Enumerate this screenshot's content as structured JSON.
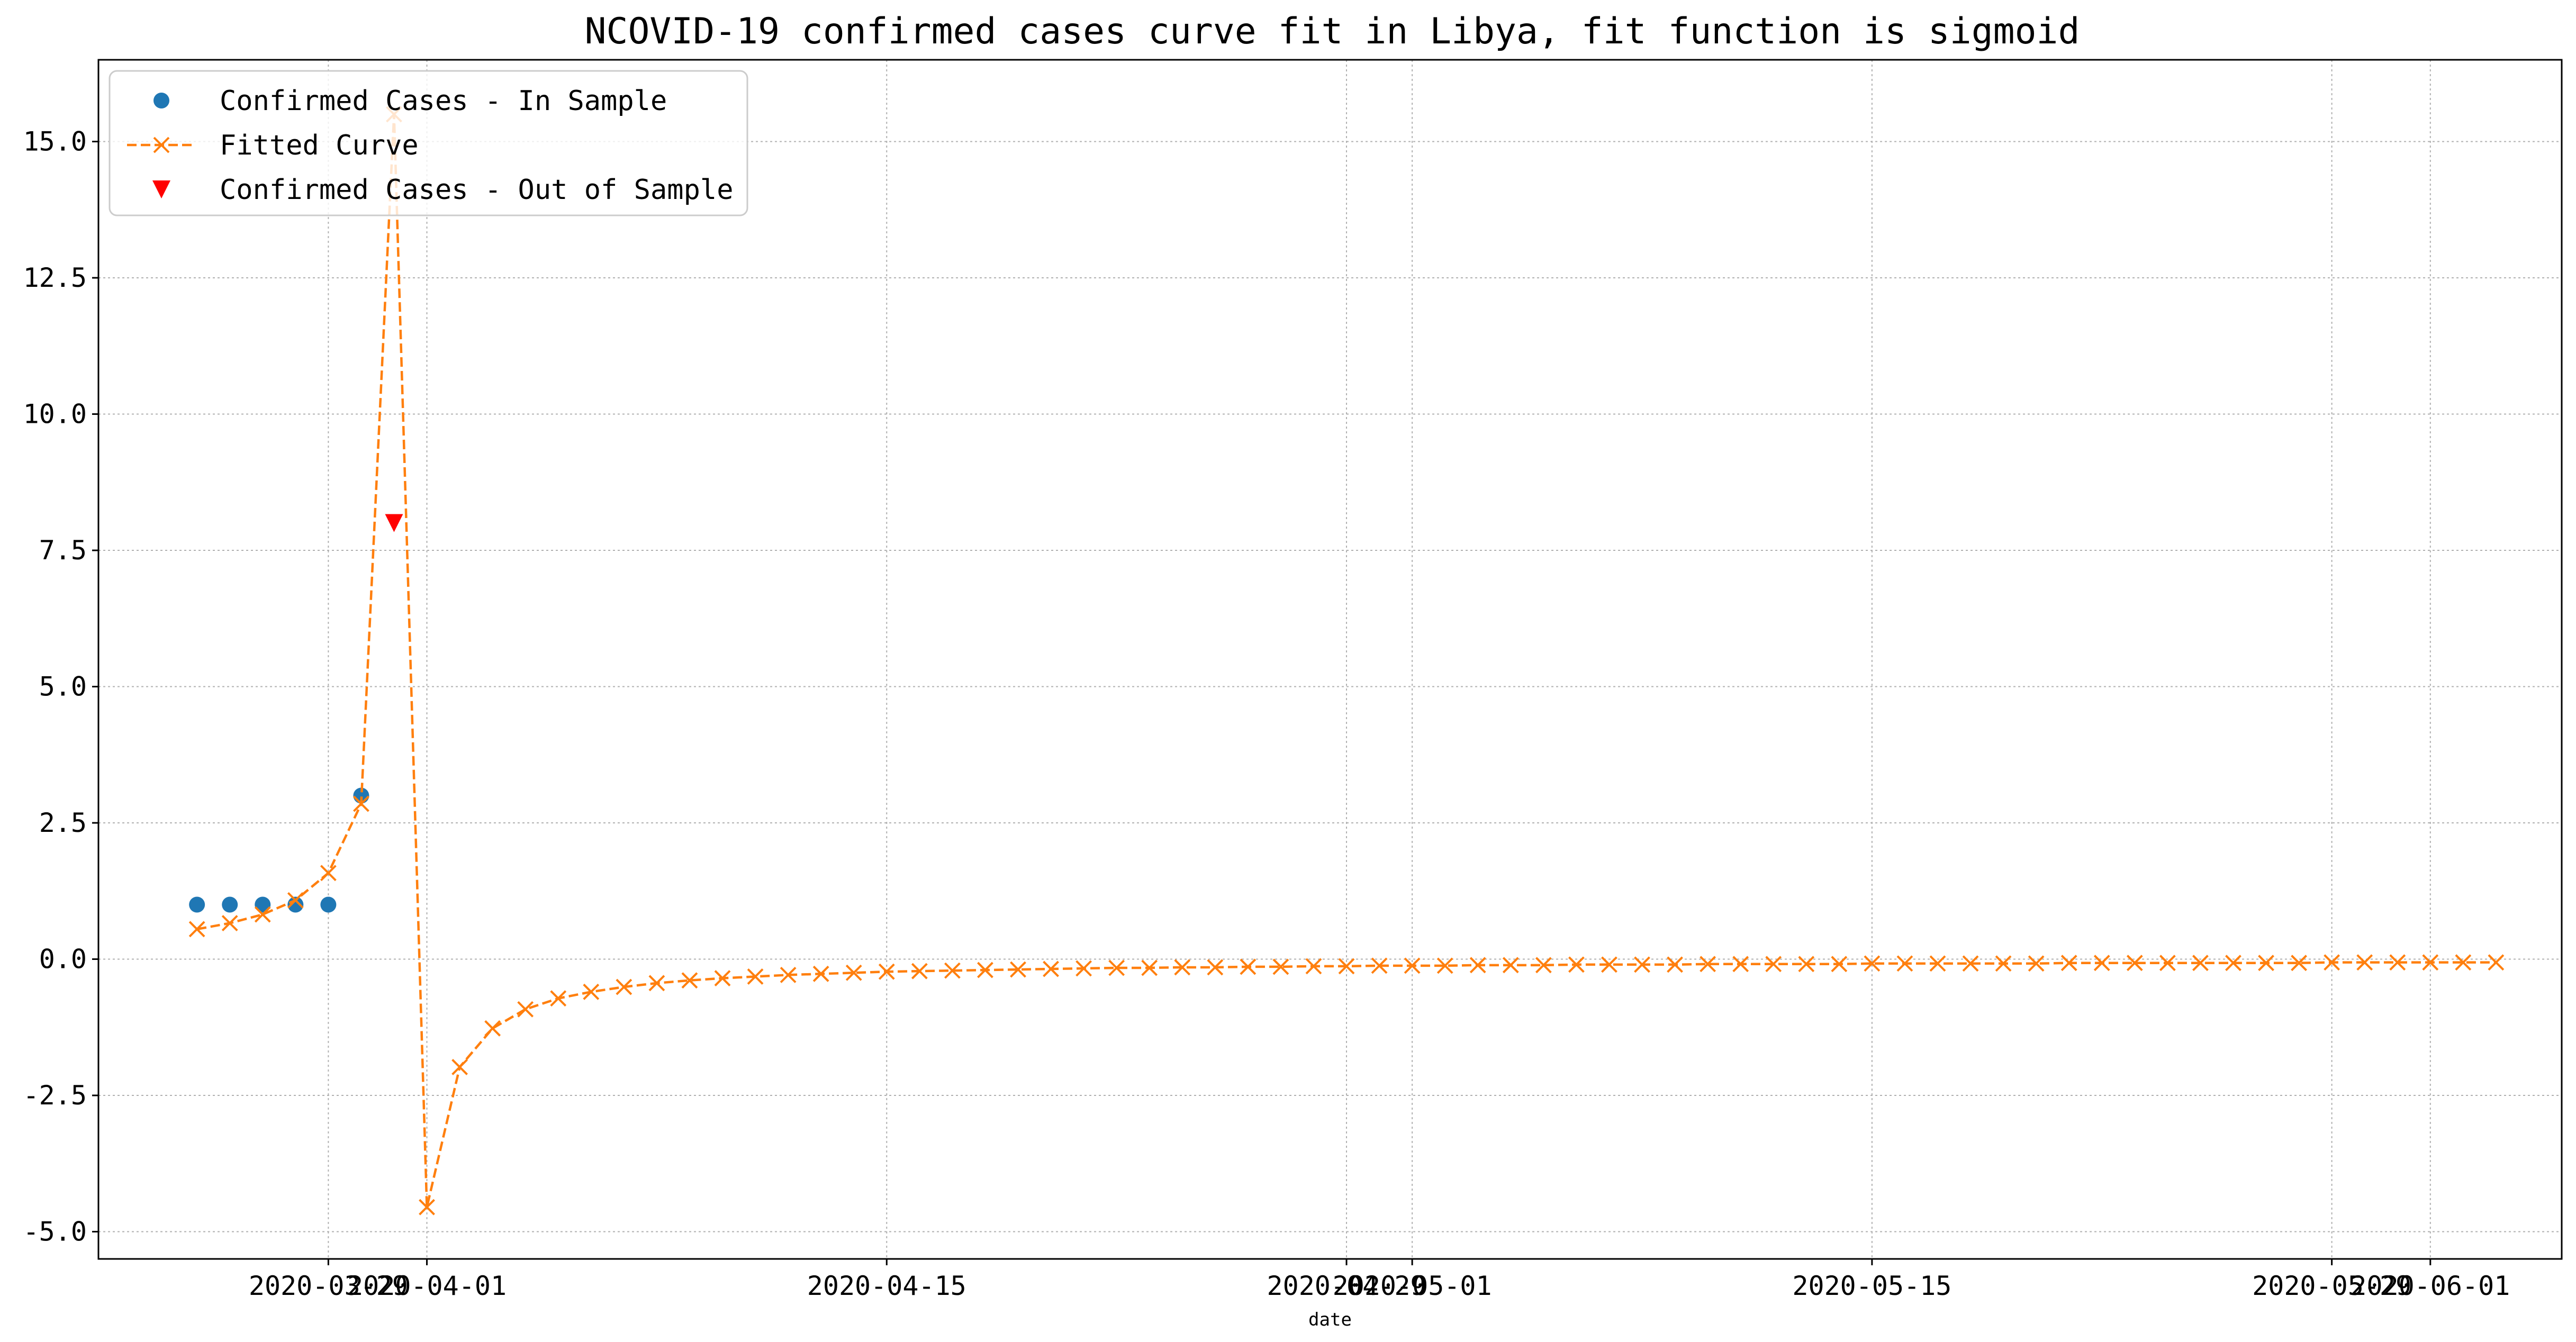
{
  "chart_data": {
    "type": "line",
    "title": "NCOVID-19 confirmed cases curve fit in Libya, fit function is sigmoid",
    "xlabel": "date",
    "ylabel": "",
    "x_ticks": [
      "2020-03-29",
      "2020-04-01",
      "2020-04-15",
      "2020-04-29",
      "2020-05-01",
      "2020-05-15",
      "2020-05-29",
      "2020-06-01"
    ],
    "y_ticks": [
      "-5.0",
      "-2.5",
      "0.0",
      "2.5",
      "5.0",
      "7.5",
      "10.0",
      "12.5",
      "15.0"
    ],
    "xlim": [
      "2020-03-22",
      "2020-06-05"
    ],
    "ylim": [
      -5.5,
      16.5
    ],
    "grid": true,
    "legend_position": "top-left",
    "series": [
      {
        "name": "Confirmed Cases - In Sample",
        "style": "points",
        "marker": "circle",
        "color": "#1f77b4",
        "x": [
          "2020-03-25",
          "2020-03-26",
          "2020-03-27",
          "2020-03-28",
          "2020-03-29",
          "2020-03-30"
        ],
        "y": [
          1,
          1,
          1,
          1,
          1,
          3
        ]
      },
      {
        "name": "Fitted Curve",
        "style": "dashed-line",
        "marker": "x",
        "color": "#ff7f0e",
        "x": [
          "2020-03-25",
          "2020-03-26",
          "2020-03-27",
          "2020-03-28",
          "2020-03-29",
          "2020-03-30",
          "2020-03-31",
          "2020-04-01",
          "2020-04-02",
          "2020-04-03",
          "2020-04-04",
          "2020-04-05",
          "2020-04-06",
          "2020-04-07",
          "2020-04-08",
          "2020-04-09",
          "2020-04-10",
          "2020-04-11",
          "2020-04-12",
          "2020-04-13",
          "2020-04-14",
          "2020-04-15",
          "2020-04-16",
          "2020-04-17",
          "2020-04-18",
          "2020-04-19",
          "2020-04-20",
          "2020-04-21",
          "2020-04-22",
          "2020-04-23",
          "2020-04-24",
          "2020-04-25",
          "2020-04-26",
          "2020-04-27",
          "2020-04-28",
          "2020-04-29",
          "2020-04-30",
          "2020-05-01",
          "2020-05-02",
          "2020-05-03",
          "2020-05-04",
          "2020-05-05",
          "2020-05-06",
          "2020-05-07",
          "2020-05-08",
          "2020-05-09",
          "2020-05-10",
          "2020-05-11",
          "2020-05-12",
          "2020-05-13",
          "2020-05-14",
          "2020-05-15",
          "2020-05-16",
          "2020-05-17",
          "2020-05-18",
          "2020-05-19",
          "2020-05-20",
          "2020-05-21",
          "2020-05-22",
          "2020-05-23",
          "2020-05-24",
          "2020-05-25",
          "2020-05-26",
          "2020-05-27",
          "2020-05-28",
          "2020-05-29",
          "2020-05-30",
          "2020-05-31",
          "2020-06-01",
          "2020-06-02",
          "2020-06-03"
        ],
        "y": [
          0.55,
          0.66,
          0.82,
          1.08,
          1.58,
          2.85,
          15.5,
          -4.55,
          -1.98,
          -1.27,
          -0.92,
          -0.72,
          -0.6,
          -0.51,
          -0.44,
          -0.39,
          -0.35,
          -0.32,
          -0.29,
          -0.27,
          -0.25,
          -0.23,
          -0.22,
          -0.21,
          -0.2,
          -0.19,
          -0.18,
          -0.17,
          -0.16,
          -0.16,
          -0.15,
          -0.15,
          -0.14,
          -0.14,
          -0.13,
          -0.13,
          -0.12,
          -0.12,
          -0.12,
          -0.11,
          -0.11,
          -0.11,
          -0.1,
          -0.1,
          -0.1,
          -0.1,
          -0.09,
          -0.09,
          -0.09,
          -0.09,
          -0.09,
          -0.08,
          -0.08,
          -0.08,
          -0.08,
          -0.08,
          -0.08,
          -0.07,
          -0.07,
          -0.07,
          -0.07,
          -0.07,
          -0.07,
          -0.07,
          -0.07,
          -0.06,
          -0.06,
          -0.06,
          -0.06,
          -0.06,
          -0.06
        ]
      },
      {
        "name": "Confirmed Cases - Out of Sample",
        "style": "points",
        "marker": "triangle-down",
        "color": "#ff0000",
        "x": [
          "2020-03-31"
        ],
        "y": [
          8
        ]
      }
    ]
  }
}
